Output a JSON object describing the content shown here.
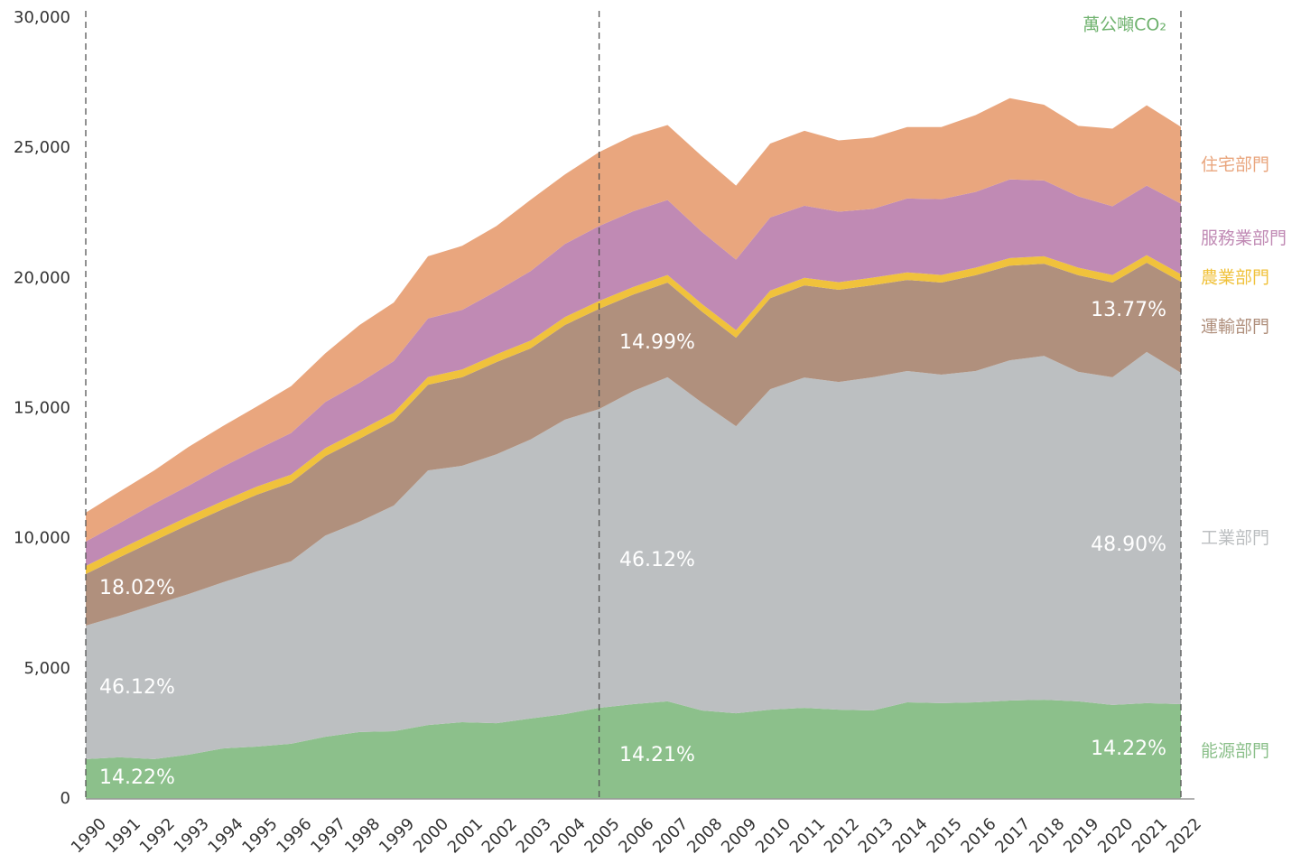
{
  "chart_data": {
    "type": "stacked_area",
    "unit_label": "萬公噸CO₂",
    "unit_color": "#6fb26e",
    "categories": [
      "1990",
      "1991",
      "1992",
      "1993",
      "1994",
      "1995",
      "1996",
      "1997",
      "1998",
      "1999",
      "2000",
      "2001",
      "2002",
      "2003",
      "2004",
      "2005",
      "2006",
      "2007",
      "2008",
      "2009",
      "2010",
      "2011",
      "2012",
      "2013",
      "2014",
      "2015",
      "2016",
      "2017",
      "2018",
      "2019",
      "2020",
      "2021",
      "2022"
    ],
    "reference_lines": [
      "1990",
      "2005",
      "2022"
    ],
    "ylim": [
      0,
      30000
    ],
    "yticks": [
      0,
      {
        "value": 5000,
        "label": "5,000"
      },
      {
        "value": 10000,
        "label": "10,000"
      },
      {
        "value": 15000,
        "label": "15,000"
      },
      {
        "value": 20000,
        "label": "20,000"
      },
      {
        "value": 25000,
        "label": "25,000"
      },
      {
        "value": 30000,
        "label": "30,000"
      }
    ],
    "series": [
      {
        "name": "能源部門",
        "color": "#8cc08b",
        "values": [
          1530,
          1600,
          1530,
          1700,
          1940,
          2010,
          2120,
          2390,
          2570,
          2600,
          2840,
          2950,
          2910,
          3090,
          3260,
          3500,
          3640,
          3750,
          3400,
          3290,
          3430,
          3500,
          3430,
          3400,
          3710,
          3680,
          3710,
          3780,
          3810,
          3750,
          3610,
          3680,
          3640
        ]
      },
      {
        "name": "工業部門",
        "color": "#bcbfc1",
        "values": [
          5130,
          5440,
          5930,
          6170,
          6380,
          6730,
          7010,
          7730,
          8080,
          8670,
          9780,
          9850,
          10330,
          10720,
          11310,
          11480,
          12030,
          12450,
          11830,
          11030,
          12310,
          12690,
          12590,
          12800,
          12730,
          12620,
          12730,
          13070,
          13210,
          12660,
          12590,
          13490,
          12730
        ]
      },
      {
        "name": "運輸部門",
        "color": "#b0907d",
        "values": [
          1980,
          2250,
          2460,
          2670,
          2810,
          2950,
          3020,
          3050,
          3190,
          3260,
          3290,
          3400,
          3540,
          3500,
          3640,
          3850,
          3710,
          3640,
          3500,
          3400,
          3500,
          3540,
          3540,
          3540,
          3500,
          3540,
          3680,
          3640,
          3540,
          3710,
          3640,
          3430,
          3500
        ]
      },
      {
        "name": "農業部門",
        "color": "#f0c23c",
        "values": [
          310,
          310,
          310,
          310,
          310,
          310,
          310,
          310,
          310,
          310,
          300,
          300,
          300,
          300,
          300,
          300,
          290,
          290,
          290,
          290,
          290,
          290,
          290,
          290,
          290,
          290,
          290,
          290,
          290,
          290,
          290,
          290,
          290
        ]
      },
      {
        "name": "服務業部門",
        "color": "#c08ab4",
        "values": [
          940,
          1010,
          1110,
          1180,
          1320,
          1420,
          1600,
          1770,
          1840,
          1980,
          2250,
          2290,
          2430,
          2670,
          2810,
          2880,
          2910,
          2880,
          2770,
          2710,
          2810,
          2770,
          2710,
          2640,
          2840,
          2910,
          2910,
          3020,
          2910,
          2740,
          2640,
          2670,
          2710
        ]
      },
      {
        "name": "住宅部門",
        "color": "#e9a67e",
        "values": [
          1110,
          1210,
          1280,
          1490,
          1560,
          1660,
          1800,
          1870,
          2220,
          2250,
          2390,
          2460,
          2500,
          2740,
          2670,
          2840,
          2910,
          2880,
          2910,
          2840,
          2840,
          2880,
          2740,
          2740,
          2740,
          2770,
          2950,
          3120,
          2910,
          2710,
          2980,
          3090,
          2950
        ]
      }
    ],
    "annotations": [
      "14.22%",
      "46.12%",
      "18.02%",
      "14.21%",
      "46.12%",
      "14.99%",
      "14.22%",
      "48.90%",
      "13.77%"
    ]
  }
}
